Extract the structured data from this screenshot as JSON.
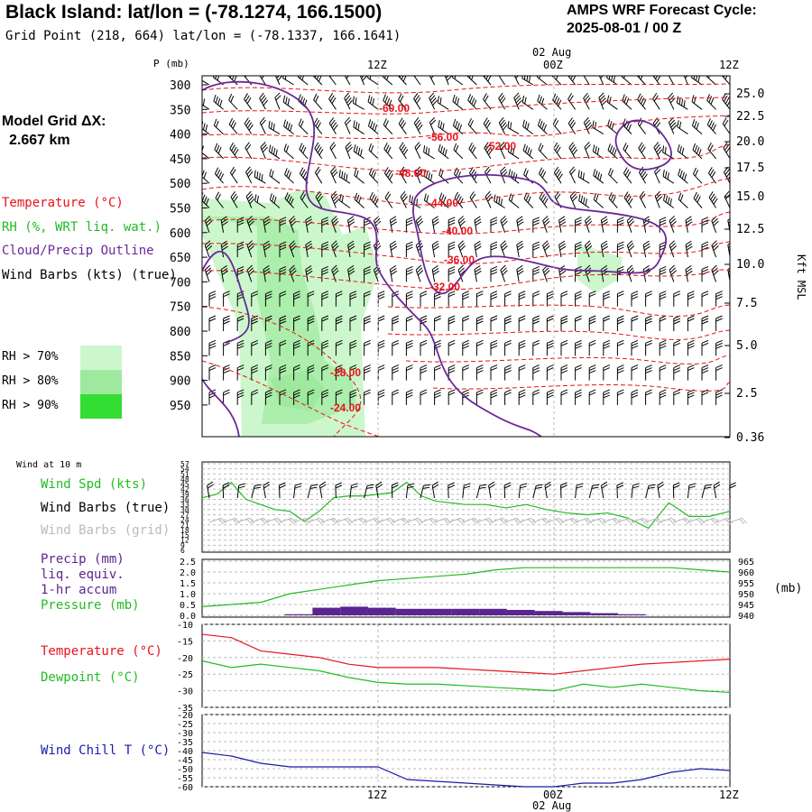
{
  "header": {
    "title": "Black Island:  lat/lon = (-78.1274, 166.1500)",
    "subtitle": "Grid Point (218, 664) lat/lon = (-78.1337, 166.1641)",
    "cycle_line1": "AMPS WRF Forecast Cycle:",
    "cycle_line2": "2025-08-01 / 00  Z"
  },
  "model_grid": {
    "label": "Model Grid ΔX:",
    "value": "2.667 km"
  },
  "legend": {
    "temperature": "Temperature (°C)",
    "rh": "RH (%, WRT liq. wat.)",
    "cloud": "Cloud/Precip Outline",
    "barbs": "Wind Barbs (kts) (true)",
    "rh70": "RH > 70%",
    "rh80": "RH > 80%",
    "rh90": "RH > 90%"
  },
  "colors": {
    "temperature": "#e8131b",
    "rh70": "#ccf7cc",
    "rh80": "#9ee99e",
    "rh90": "#33dd33",
    "cloud": "#6a2896",
    "wind_speed": "#22bb22",
    "barbs_grid": "#bbbbbb",
    "precip": "#5a2590",
    "dewpoint": "#22bb22",
    "wind_chill": "#1a1aaa"
  },
  "time_axis": {
    "top_labels": [
      "12Z",
      "00Z",
      "12Z"
    ],
    "date_label": "02 Aug"
  },
  "sounding": {
    "p_label": "P (mb)",
    "pressure_levels": [
      "300",
      "350",
      "400",
      "450",
      "500",
      "550",
      "600",
      "650",
      "700",
      "750",
      "800",
      "850",
      "900",
      "950"
    ],
    "height_ticks": [
      "25.0",
      "22.5",
      "20.0",
      "17.5",
      "15.0",
      "12.5",
      "10.0",
      "7.5",
      "5.0",
      "2.5",
      "0.36"
    ],
    "right_axis_label": "Kft MSL",
    "temp_contour_labels": [
      "-60.00",
      "-56.00",
      "-52.00",
      "-48.00",
      "-44.00",
      "-40.00",
      "-36.00",
      "-32.00",
      "-28.00",
      "-24.00"
    ]
  },
  "wind_panel": {
    "title": "Wind at 10 m",
    "label_speed": "Wind Spd (kts)",
    "label_true": "Wind Barbs (true)",
    "label_grid": "Wind Barbs (grid)",
    "y_ticks": [
      "57",
      "54",
      "51",
      "48",
      "45",
      "42",
      "39",
      "36",
      "33",
      "30",
      "27",
      "24",
      "21",
      "18",
      "15",
      "12",
      "9",
      "6"
    ]
  },
  "precip_panel": {
    "label_precip": "Precip (mm)",
    "label_liq": "liq. equiv.",
    "label_accum": "1-hr accum",
    "label_pressure": "Pressure (mb)",
    "left_ticks": [
      "2.5",
      "2.0",
      "1.5",
      "1.0",
      "0.5",
      "0.0"
    ],
    "right_ticks": [
      "965",
      "960",
      "955",
      "950",
      "945",
      "940"
    ],
    "right_unit": "(mb)"
  },
  "temp_panel": {
    "label_temp": "Temperature (°C)",
    "label_dew": "Dewpoint (°C)",
    "y_ticks": [
      "-10",
      "-15",
      "-20",
      "-25",
      "-30",
      "-35"
    ]
  },
  "chill_panel": {
    "label": "Wind Chill T (°C)",
    "y_ticks": [
      "-20",
      "-25",
      "-30",
      "-35",
      "-40",
      "-45",
      "-50",
      "-55",
      "-60"
    ],
    "bottom_labels": [
      "12Z",
      "00Z",
      "12Z"
    ],
    "date_label": "02 Aug"
  },
  "chart_data": {
    "type": "line",
    "x_hours": [
      0,
      2,
      4,
      6,
      8,
      10,
      12,
      14,
      16,
      18,
      20,
      22,
      24,
      26,
      28,
      30,
      32,
      34,
      36
    ],
    "wind_speed_kts": [
      37,
      39,
      46,
      36,
      33,
      30,
      29,
      23,
      29,
      37,
      38,
      38,
      39,
      40,
      46,
      38,
      35,
      34,
      33
    ],
    "wind_speed_late": [
      33,
      31,
      33,
      30,
      28,
      27,
      28,
      25,
      19,
      34,
      26,
      26,
      29
    ],
    "precip_mm": [
      0,
      0,
      0.05,
      0.35,
      0.4,
      0.35,
      0.3,
      0.3,
      0.3,
      0.3,
      0.25,
      0.2,
      0.15,
      0.1,
      0.05,
      0,
      0,
      0,
      0
    ],
    "pressure_mb": [
      944,
      945,
      946,
      950,
      952,
      954,
      956,
      957,
      958,
      959,
      961,
      962,
      962,
      962,
      962,
      962,
      962,
      961,
      960
    ],
    "temperature_c": [
      -13,
      -14,
      -18,
      -19,
      -20,
      -22,
      -23,
      -23,
      -23,
      -23.5,
      -24,
      -24.5,
      -25,
      -24,
      -23,
      -22,
      -21.5,
      -21,
      -20.5
    ],
    "dewpoint_c": [
      -21,
      -23,
      -22,
      -23,
      -24,
      -26,
      -27.5,
      -28,
      -28,
      -28.5,
      -29,
      -29.5,
      -30,
      -28,
      -29,
      -28,
      -29,
      -30,
      -30.5
    ],
    "wind_chill_c": [
      -41,
      -43,
      -47,
      -49,
      -49,
      -49,
      -49,
      -56,
      -57,
      -58,
      -59,
      -60,
      -60,
      -58,
      -58,
      -56,
      -52,
      -50,
      -51
    ]
  }
}
